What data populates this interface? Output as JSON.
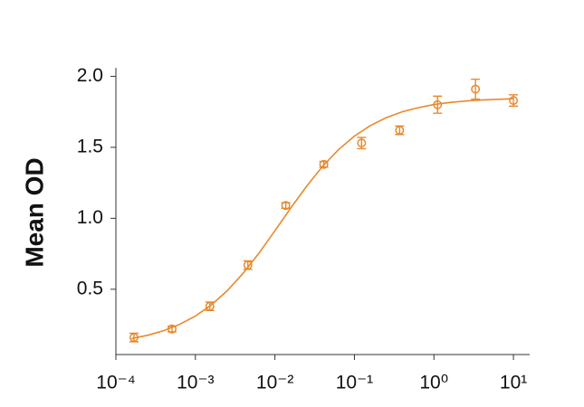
{
  "chart_data": {
    "type": "scatter",
    "ylabel": "Mean OD",
    "color": "#e8892c",
    "log_x": true,
    "x": [
      0.000169,
      0.000508,
      0.00152,
      0.00457,
      0.0137,
      0.0412,
      0.123,
      0.37,
      1.11,
      3.33,
      10
    ],
    "values": [
      0.16,
      0.22,
      0.38,
      0.67,
      1.09,
      1.38,
      1.53,
      1.62,
      1.8,
      1.91,
      1.83
    ],
    "errors": [
      0.03,
      0.02,
      0.03,
      0.03,
      0.02,
      0.02,
      0.04,
      0.03,
      0.06,
      0.07,
      0.04
    ],
    "fit_x": [
      0.000158,
      0.000251,
      0.000398,
      0.000631,
      0.001,
      0.00158,
      0.00251,
      0.00398,
      0.00631,
      0.01,
      0.0158,
      0.0251,
      0.0398,
      0.0631,
      0.1,
      0.158,
      0.251,
      0.398,
      0.631,
      1,
      1.58,
      2.51,
      3.98,
      6.31,
      10
    ],
    "fit_values": [
      0.153,
      0.176,
      0.208,
      0.252,
      0.311,
      0.389,
      0.489,
      0.612,
      0.755,
      0.912,
      1.072,
      1.226,
      1.366,
      1.484,
      1.579,
      1.653,
      1.709,
      1.75,
      1.779,
      1.801,
      1.816,
      1.826,
      1.833,
      1.838,
      1.842
    ],
    "xlim": [
      0.0001,
      16
    ],
    "ylim": [
      0.04,
      2.06
    ],
    "xticks": [
      {
        "value": 0.0001,
        "label": "10⁻⁴"
      },
      {
        "value": 0.001,
        "label": "10⁻³"
      },
      {
        "value": 0.01,
        "label": "10⁻²"
      },
      {
        "value": 0.1,
        "label": "10⁻¹"
      },
      {
        "value": 1,
        "label": "10⁰"
      },
      {
        "value": 10,
        "label": "10¹"
      }
    ],
    "yticks": [
      0.5,
      {
        "value": 1,
        "label": "1.0"
      },
      1.5,
      {
        "value": 2,
        "label": "2.0"
      }
    ]
  }
}
